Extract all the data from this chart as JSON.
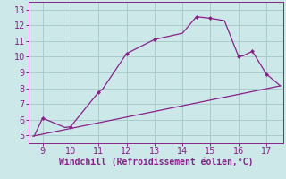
{
  "xlabel": "Windchill (Refroidissement éolien,°C)",
  "bg_color": "#cde8e8",
  "grid_color": "#aacccc",
  "line_color": "#882288",
  "xlim": [
    8.5,
    17.6
  ],
  "ylim": [
    4.5,
    13.5
  ],
  "xticks": [
    9,
    10,
    11,
    12,
    13,
    14,
    15,
    16,
    17
  ],
  "yticks": [
    5,
    6,
    7,
    8,
    9,
    10,
    11,
    12,
    13
  ],
  "curve1_x": [
    8.7,
    9.0,
    9.8,
    10.0,
    11.0,
    11.15,
    12.0,
    13.0,
    13.0,
    14.0,
    14.5,
    15.0,
    15.5,
    16.0,
    16.15,
    16.5,
    17.0,
    17.5
  ],
  "curve1_y": [
    4.95,
    6.1,
    5.5,
    5.55,
    7.75,
    7.95,
    10.2,
    11.1,
    11.1,
    11.5,
    12.55,
    12.45,
    12.3,
    10.05,
    10.05,
    10.35,
    8.9,
    8.15
  ],
  "curve1_markers_x": [
    9.0,
    10.0,
    11.0,
    12.0,
    13.0,
    14.5,
    15.0,
    16.0,
    16.5,
    17.0
  ],
  "curve1_markers_y": [
    6.1,
    5.55,
    7.75,
    10.2,
    11.1,
    12.55,
    12.45,
    10.05,
    10.35,
    8.9
  ],
  "curve2_x": [
    8.65,
    17.5
  ],
  "curve2_y": [
    4.95,
    8.15
  ],
  "axis_fontsize": 7,
  "tick_fontsize": 7
}
